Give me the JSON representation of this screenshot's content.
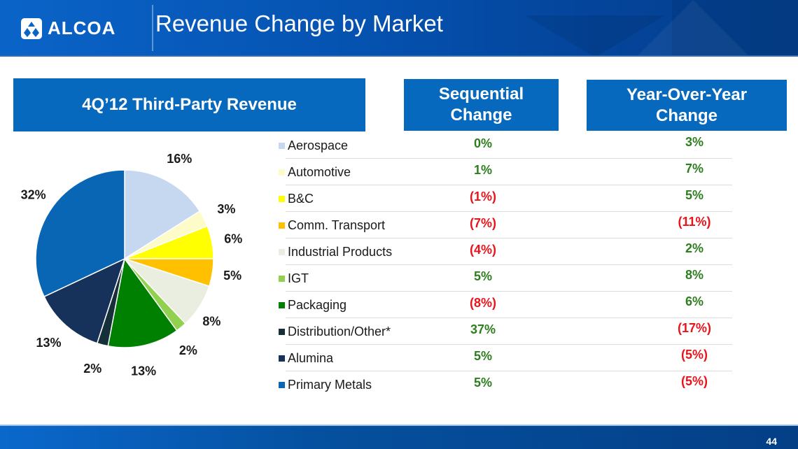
{
  "header": {
    "logo_text": "ALCOA",
    "title": "Revenue Change by Market"
  },
  "boxes": {
    "revenue": "4Q’12 Third-Party Revenue",
    "sequential_line1": "Sequential",
    "sequential_line2": "Change",
    "yoy_line1": "Year-Over-Year",
    "yoy_line2": "Change"
  },
  "colors": {
    "brand_blue": "#0769bd",
    "positive": "#2e7d1e",
    "negative": "#e8141c"
  },
  "markets": [
    {
      "name": "Aerospace",
      "share": "16%",
      "sequential": "0%",
      "yoy": "3%",
      "color": "#c6d8ef"
    },
    {
      "name": "Automotive",
      "share": "3%",
      "sequential": "1%",
      "yoy": "7%",
      "color": "#fdfbc8"
    },
    {
      "name": "B&C",
      "share": "6%",
      "sequential": "(1%)",
      "yoy": "5%",
      "color": "#ffff00"
    },
    {
      "name": "Comm. Transport",
      "share": "5%",
      "sequential": "(7%)",
      "yoy": "(11%)",
      "color": "#ffc000"
    },
    {
      "name": "Industrial Products",
      "share": "8%",
      "sequential": "(4%)",
      "yoy": "2%",
      "color": "#eaeee0"
    },
    {
      "name": "IGT",
      "share": "2%",
      "sequential": "5%",
      "yoy": "8%",
      "color": "#92d050"
    },
    {
      "name": "Packaging",
      "share": "13%",
      "sequential": "(8%)",
      "yoy": "6%",
      "color": "#008000"
    },
    {
      "name": "Distribution/Other*",
      "share": "2%",
      "sequential": "37%",
      "yoy": "(17%)",
      "color": "#16303a"
    },
    {
      "name": "Alumina",
      "share": "13%",
      "sequential": "5%",
      "yoy": "(5%)",
      "color": "#17325a"
    },
    {
      "name": "Primary Metals",
      "share": "32%",
      "sequential": "5%",
      "yoy": "(5%)",
      "color": "#0866b4"
    }
  ],
  "chart_data": {
    "type": "pie",
    "title": "4Q’12 Third-Party Revenue",
    "categories": [
      "Aerospace",
      "Automotive",
      "B&C",
      "Comm. Transport",
      "Industrial Products",
      "IGT",
      "Packaging",
      "Distribution/Other*",
      "Alumina",
      "Primary Metals"
    ],
    "values": [
      16,
      3,
      6,
      5,
      8,
      2,
      13,
      2,
      13,
      32
    ],
    "labels": [
      "16%",
      "3%",
      "6%",
      "5%",
      "8%",
      "2%",
      "13%",
      "2%",
      "13%",
      "32%"
    ],
    "start": "12 o'clock",
    "direction": "clockwise",
    "legend_placement": "right"
  },
  "footer": {
    "page_number": "44"
  }
}
